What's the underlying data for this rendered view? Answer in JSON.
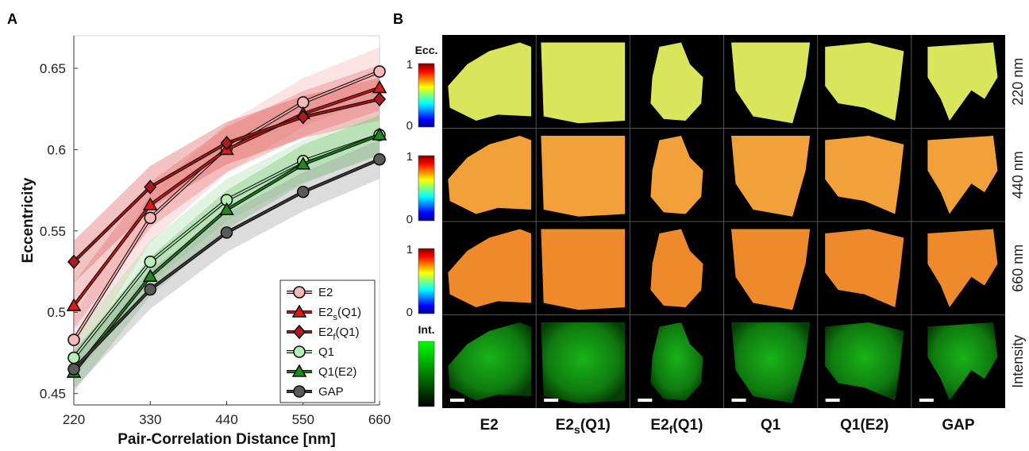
{
  "panel_a": {
    "letter": "A",
    "chart_data": {
      "type": "line",
      "xlabel": "Pair-Correlation Distance [nm]",
      "ylabel": "Eccentricity",
      "x": [
        220,
        330,
        440,
        550,
        660
      ],
      "x_ticks": [
        "220",
        "330",
        "440",
        "550",
        "660"
      ],
      "y_ticks": [
        "0.45",
        "0.5",
        "0.55",
        "0.6",
        "0.65"
      ],
      "xlim": [
        220,
        660
      ],
      "ylim": [
        0.443,
        0.67
      ],
      "grid": false,
      "legend_position": "bottom-right",
      "series": [
        {
          "name": "E2",
          "sub": "",
          "suffix": "",
          "marker": "circle",
          "fill": "#f4b8b8",
          "line": "#f4a6a6",
          "band": "#f5b3b3",
          "band_width": 0.015,
          "values": [
            0.483,
            0.558,
            0.601,
            0.629,
            0.648
          ]
        },
        {
          "name": "E2",
          "sub": "s",
          "suffix": "(Q1)",
          "marker": "triangle",
          "fill": "#e01818",
          "line": "#d01010",
          "band": "#e57373",
          "band_width": 0.014,
          "values": [
            0.504,
            0.566,
            0.6,
            0.622,
            0.638
          ]
        },
        {
          "name": "E2",
          "sub": "f",
          "suffix": "(Q1)",
          "marker": "diamond",
          "fill": "#b3171f",
          "line": "#b01010",
          "band": "#d9534f",
          "band_width": 0.013,
          "values": [
            0.531,
            0.577,
            0.604,
            0.62,
            0.631
          ]
        },
        {
          "name": "Q1",
          "sub": "",
          "suffix": "",
          "marker": "circle",
          "fill": "#b7f0b7",
          "line": "#a3e4a3",
          "band": "#a8e0a8",
          "band_width": 0.013,
          "values": [
            0.472,
            0.531,
            0.569,
            0.593,
            0.609
          ]
        },
        {
          "name": "Q1(E2)",
          "sub": "",
          "suffix": "",
          "marker": "triangle",
          "fill": "#1f8a1f",
          "line": "#1a7a1a",
          "band": "#6fbf6f",
          "band_width": 0.012,
          "values": [
            0.463,
            0.522,
            0.563,
            0.591,
            0.609
          ]
        },
        {
          "name": "GAP",
          "sub": "",
          "suffix": "",
          "marker": "circle",
          "fill": "#5a5a5a",
          "line": "#3a3a3a",
          "band": "#9a9a9a",
          "band_width": 0.012,
          "values": [
            0.465,
            0.514,
            0.549,
            0.574,
            0.594
          ]
        }
      ]
    }
  },
  "panel_b": {
    "letter": "B",
    "columns": [
      {
        "name": "E2",
        "sub": "",
        "suffix": ""
      },
      {
        "name": "E2",
        "sub": "s",
        "suffix": "(Q1)"
      },
      {
        "name": "E2",
        "sub": "f",
        "suffix": "(Q1)"
      },
      {
        "name": "Q1",
        "sub": "",
        "suffix": ""
      },
      {
        "name": "Q1(E2)",
        "sub": "",
        "suffix": ""
      },
      {
        "name": "GAP",
        "sub": "",
        "suffix": ""
      }
    ],
    "rows": [
      "220 nm",
      "440 nm",
      "660 nm",
      "Intensity"
    ],
    "colorbar_titles": [
      "Ecc.",
      "Int."
    ],
    "colorbar_ticks": [
      "1",
      "0"
    ],
    "colors": {
      "jet_low": "#00008f",
      "jet_high": "#800000",
      "intensity": "#00ff00"
    }
  }
}
